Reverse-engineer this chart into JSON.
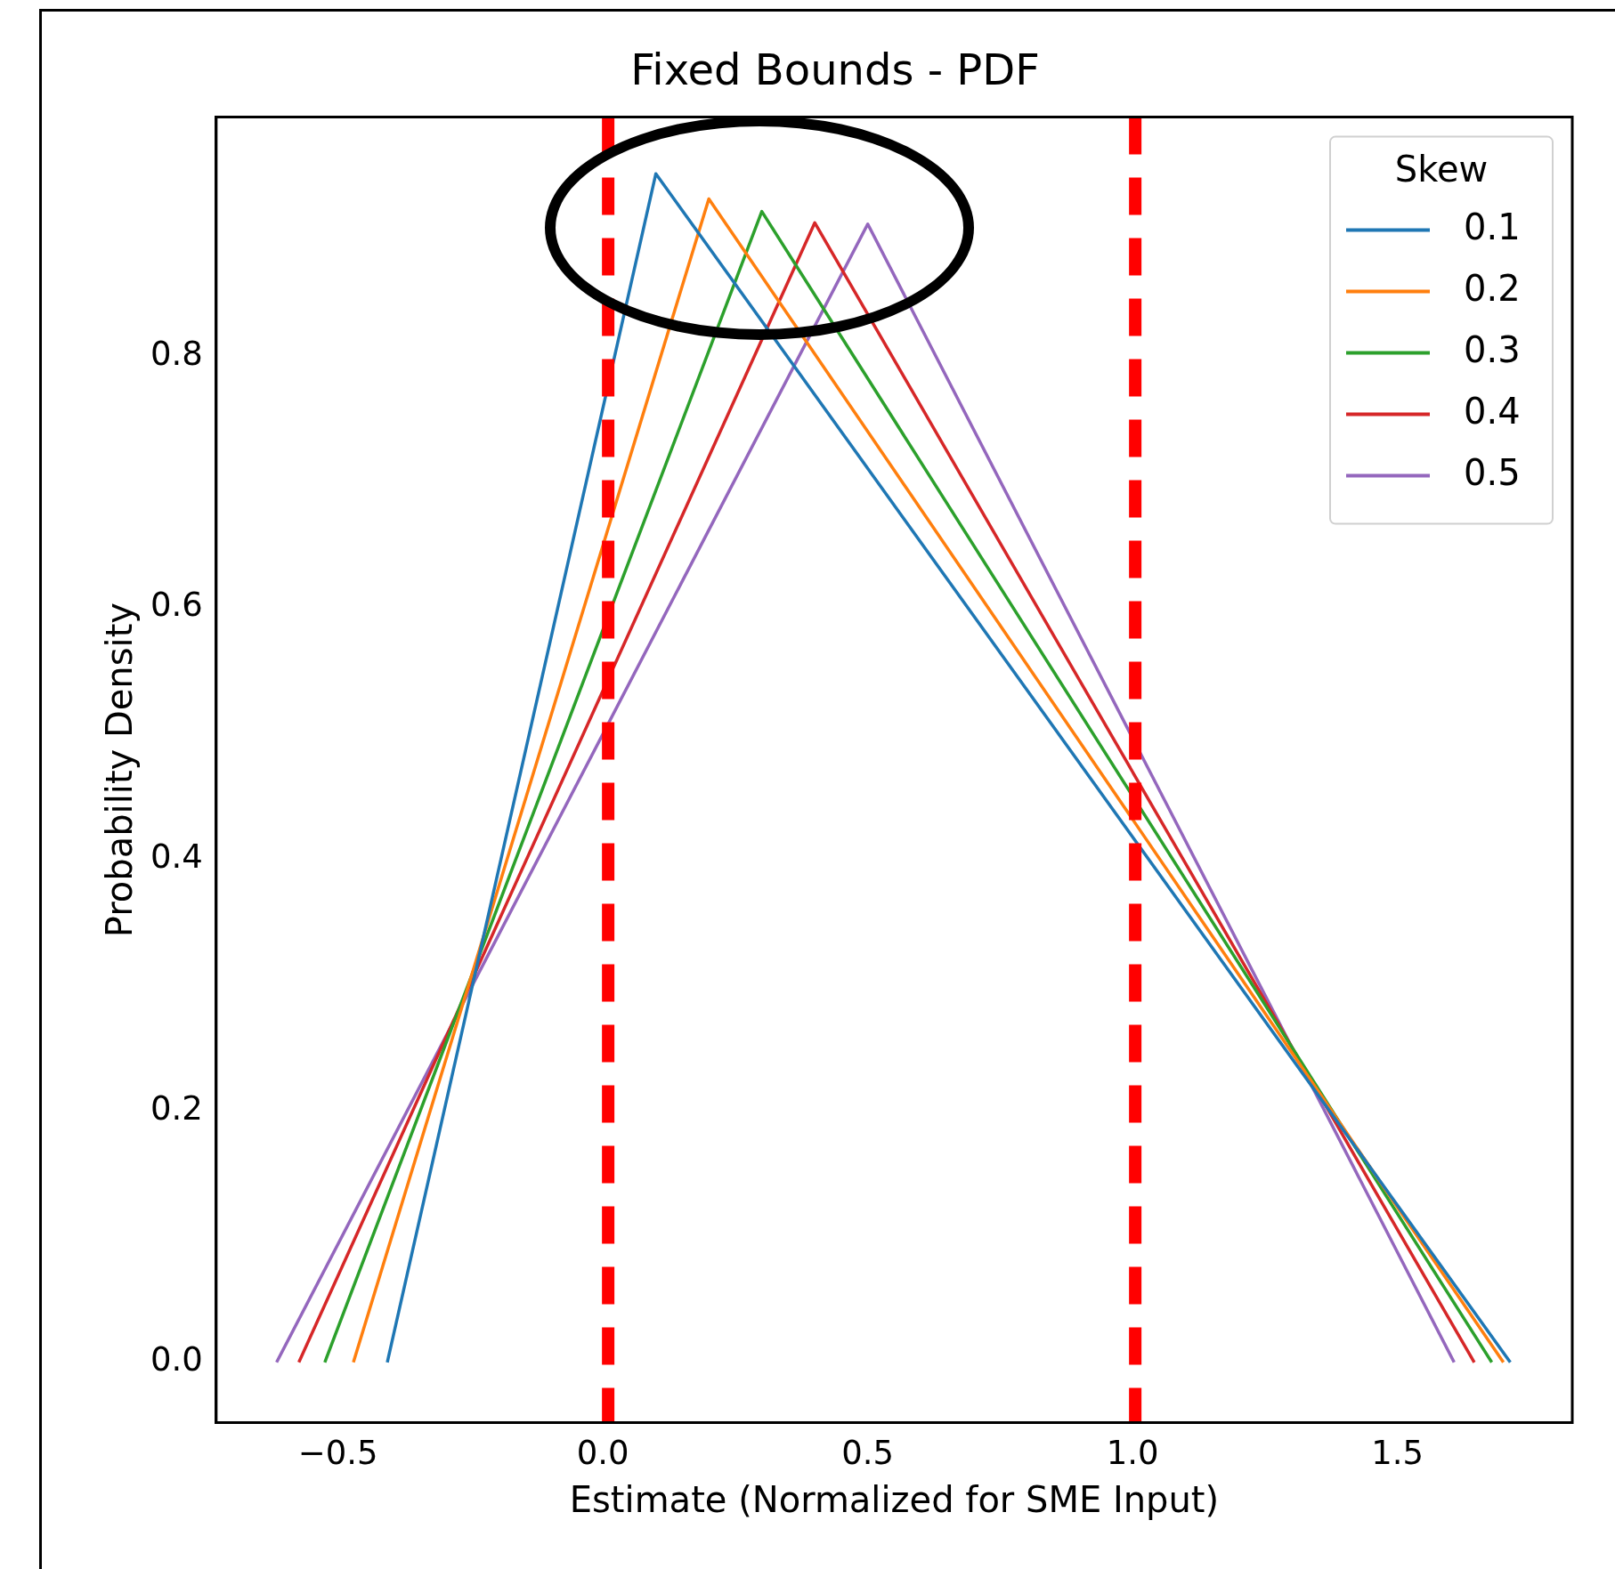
{
  "chart_data": {
    "type": "line",
    "title": "Fixed Bounds - PDF",
    "xlabel": "Estimate (Normalized for SME Input)",
    "ylabel": "Probability Density",
    "legend_title": "Skew",
    "legend": "top right",
    "grid": false,
    "marker": "none",
    "line_style": "solid",
    "xlim": [
      -0.73,
      1.83
    ],
    "xticks": [
      {
        "value": -0.5,
        "label": "−0.5"
      },
      {
        "value": 0,
        "label": "0.0"
      },
      0.5,
      {
        "value": 1,
        "label": "1.0"
      },
      1.5
    ],
    "ylim": [
      -0.048,
      0.99
    ],
    "yticks": [
      {
        "value": 0,
        "label": "0.0"
      },
      0.2,
      0.4,
      0.6,
      0.8
    ],
    "series": [
      {
        "name": "0.1",
        "color": "#1f77b4",
        "x": [
          -0.407,
          0.1,
          1.713
        ],
        "values": [
          0,
          0.945,
          0
        ]
      },
      {
        "name": "0.2",
        "color": "#ff7f0e",
        "x": [
          -0.471,
          0.2,
          1.7
        ],
        "values": [
          0,
          0.925,
          0
        ]
      },
      {
        "name": "0.3",
        "color": "#2ca02c",
        "x": [
          -0.525,
          0.3,
          1.678
        ],
        "values": [
          0,
          0.915,
          0
        ]
      },
      {
        "name": "0.4",
        "color": "#d62728",
        "x": [
          -0.574,
          0.4,
          1.645
        ],
        "values": [
          0,
          0.906,
          0
        ]
      },
      {
        "name": "0.5",
        "color": "#9467bd",
        "x": [
          -0.616,
          0.5,
          1.607
        ],
        "values": [
          0,
          0.905,
          0
        ]
      }
    ],
    "ref_lines": [
      {
        "axis": "x",
        "value": 0.01,
        "color": "#ff0000",
        "line_style": "dashed"
      },
      {
        "axis": "x",
        "value": 1.005,
        "color": "#ff0000",
        "line_style": "dashed"
      }
    ]
  }
}
